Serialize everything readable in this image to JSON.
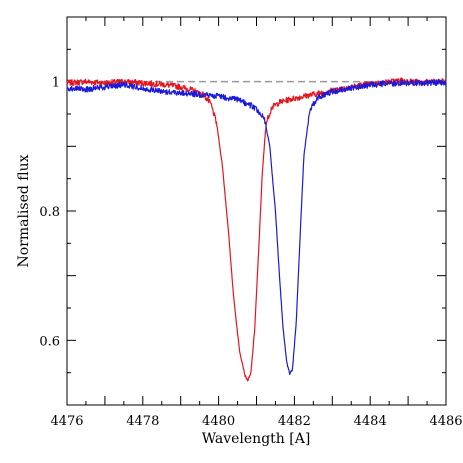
{
  "chart_data": {
    "type": "line",
    "title": "",
    "xlabel": "Wavelength [A]",
    "ylabel": "Normalised flux",
    "xlim": [
      4476,
      4486
    ],
    "ylim": [
      0.5,
      1.1
    ],
    "x_ticks": [
      "4476",
      "4478",
      "4480",
      "4482",
      "4484",
      "4486"
    ],
    "y_ticks": [
      "0.6",
      "0.8",
      "1"
    ],
    "grid": false,
    "legend": "none",
    "reference_line": {
      "y": 1.0,
      "style": "dashed",
      "color": "#999999"
    },
    "series": [
      {
        "color": "#e8141c",
        "x": [
          4476.0,
          4476.5,
          4477.0,
          4477.5,
          4478.0,
          4478.5,
          4479.0,
          4479.3,
          4479.6,
          4479.8,
          4479.95,
          4480.1,
          4480.25,
          4480.4,
          4480.55,
          4480.7,
          4480.77,
          4480.85,
          4480.95,
          4481.05,
          4481.15,
          4481.25,
          4481.4,
          4481.6,
          4481.9,
          4482.3,
          4482.8,
          4483.3,
          4483.8,
          4484.3,
          4484.8,
          4485.3,
          4486.0
        ],
        "y": [
          0.998,
          1.0,
          0.998,
          1.0,
          0.998,
          0.996,
          0.992,
          0.987,
          0.98,
          0.965,
          0.935,
          0.87,
          0.775,
          0.665,
          0.585,
          0.545,
          0.538,
          0.548,
          0.615,
          0.73,
          0.855,
          0.935,
          0.96,
          0.968,
          0.973,
          0.978,
          0.984,
          0.99,
          0.995,
          0.998,
          1.002,
          0.999,
          1.0
        ]
      },
      {
        "color": "#1a1adc",
        "x": [
          4476.0,
          4476.5,
          4477.0,
          4477.5,
          4478.0,
          4478.5,
          4479.0,
          4479.5,
          4480.0,
          4480.5,
          4480.9,
          4481.2,
          4481.35,
          4481.5,
          4481.6,
          4481.7,
          4481.8,
          4481.88,
          4481.95,
          4482.05,
          4482.15,
          4482.25,
          4482.4,
          4482.6,
          4483.0,
          4483.5,
          4484.0,
          4484.5,
          4485.0,
          4485.5,
          4486.0
        ],
        "y": [
          0.99,
          0.988,
          0.992,
          0.995,
          0.99,
          0.985,
          0.983,
          0.98,
          0.978,
          0.972,
          0.962,
          0.945,
          0.9,
          0.8,
          0.705,
          0.62,
          0.565,
          0.548,
          0.555,
          0.63,
          0.76,
          0.885,
          0.955,
          0.975,
          0.985,
          0.99,
          0.995,
          0.997,
          0.998,
          0.998,
          0.999
        ]
      }
    ]
  }
}
